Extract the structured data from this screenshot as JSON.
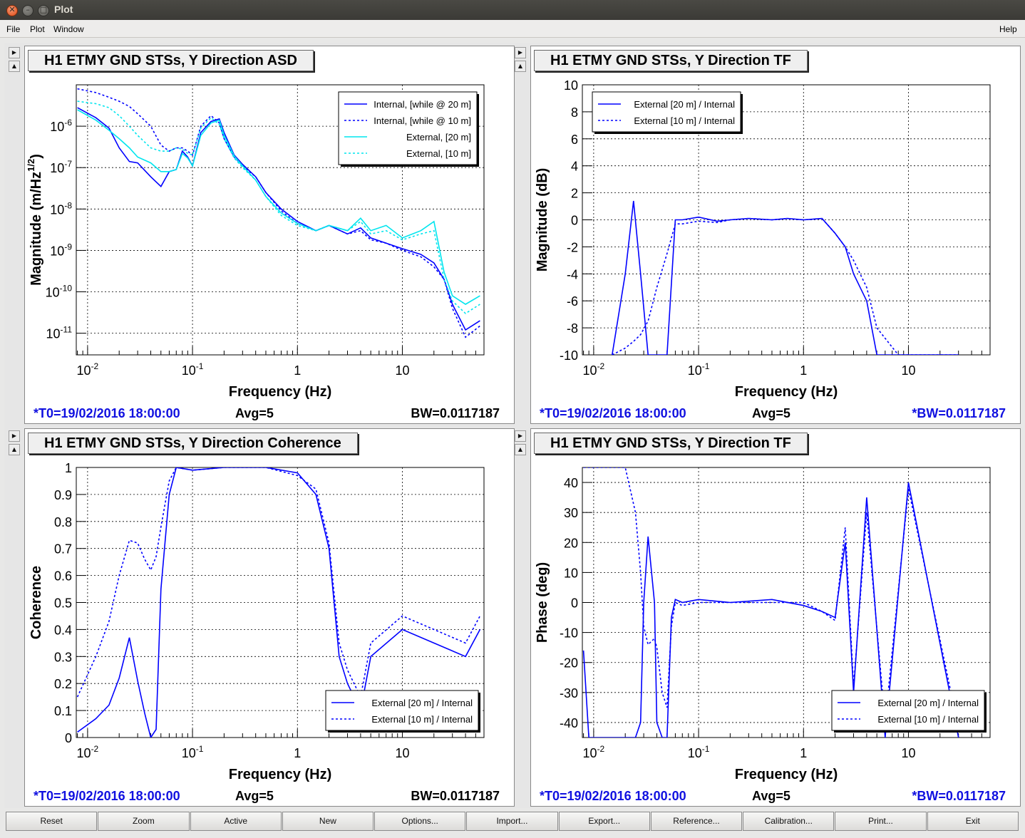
{
  "window": {
    "title": "Plot"
  },
  "menu": {
    "file": "File",
    "plot": "Plot",
    "window": "Window",
    "help": "Help"
  },
  "buttons": [
    "Reset",
    "Zoom",
    "Active",
    "New",
    "Options...",
    "Import...",
    "Export...",
    "Reference...",
    "Calibration...",
    "Print...",
    "Exit"
  ],
  "panels": [
    {
      "title": "H1 ETMY GND STSs, Y Direction ASD",
      "t0": "*T0=19/02/2016 18:00:00",
      "avg": "Avg=5",
      "bw": "BW=0.0117187",
      "bw_blue": false,
      "ylabel": "Magnitude (m/Hz^1/2)",
      "xlabel": "Frequency (Hz)",
      "legend": [
        "Internal, [while @ 20 m]",
        "Internal, [while @ 10 m]",
        "External, [20 m]",
        "External, [10 m]"
      ]
    },
    {
      "title": "H1 ETMY GND STSs, Y Direction TF",
      "t0": "*T0=19/02/2016 18:00:00",
      "avg": "Avg=5",
      "bw": "*BW=0.0117187",
      "bw_blue": true,
      "ylabel": "Magnitude (dB)",
      "xlabel": "Frequency (Hz)",
      "legend": [
        "External [20 m] / Internal",
        "External [10 m] / Internal"
      ]
    },
    {
      "title": "H1 ETMY GND STSs, Y Direction Coherence",
      "t0": "*T0=19/02/2016 18:00:00",
      "avg": "Avg=5",
      "bw": "BW=0.0117187",
      "bw_blue": false,
      "ylabel": "Coherence",
      "xlabel": "Frequency (Hz)",
      "legend": [
        "External [20 m] / Internal",
        "External [10 m] / Internal"
      ]
    },
    {
      "title": "H1 ETMY GND STSs, Y Direction TF",
      "t0": "*T0=19/02/2016 18:00:00",
      "avg": "Avg=5",
      "bw": "*BW=0.0117187",
      "bw_blue": true,
      "ylabel": "Phase (deg)",
      "xlabel": "Frequency (Hz)",
      "legend": [
        "External [20 m] / Internal",
        "External [10 m] / Internal"
      ]
    }
  ],
  "colors": {
    "series_blue": "#0000ff",
    "series_cyan": "#00e5ee",
    "info_blue": "#1010e0"
  },
  "chart_data": [
    {
      "type": "line",
      "xscale": "log",
      "yscale": "log",
      "title": "H1 ETMY GND STSs, Y Direction ASD",
      "xlabel": "Frequency (Hz)",
      "ylabel": "Magnitude (m/Hz^1/2)",
      "xlim": [
        0.0078,
        60
      ],
      "ylim": [
        3e-12,
        1e-05
      ],
      "xticks": [
        "10^-2",
        "10^-1",
        "1",
        "10"
      ],
      "yticks": [
        "10^-11",
        "10^-10",
        "10^-9",
        "10^-8",
        "10^-7",
        "10^-6"
      ],
      "grid": true,
      "legend": "top-right",
      "x": [
        0.008,
        0.012,
        0.016,
        0.02,
        0.025,
        0.03,
        0.04,
        0.05,
        0.06,
        0.07,
        0.08,
        0.09,
        0.1,
        0.12,
        0.15,
        0.18,
        0.2,
        0.25,
        0.3,
        0.4,
        0.5,
        0.7,
        1,
        1.5,
        2,
        3,
        4,
        5,
        7,
        10,
        15,
        20,
        25,
        30,
        40,
        55
      ],
      "series": [
        {
          "name": "Internal, [while @ 20 m]",
          "style": "solid",
          "color": "#0000ff",
          "values": [
            2.8e-06,
            1.6e-06,
            9e-07,
            3e-07,
            1.4e-07,
            1.3e-07,
            6e-08,
            3.5e-08,
            8e-08,
            9e-08,
            2.5e-07,
            1.8e-07,
            1.1e-07,
            7e-07,
            1.3e-06,
            1.5e-06,
            7e-07,
            2e-07,
            1.2e-07,
            6e-08,
            2.5e-08,
            1e-08,
            5e-09,
            3e-09,
            4e-09,
            2.5e-09,
            3.5e-09,
            2e-09,
            1.5e-09,
            1.1e-09,
            8e-10,
            5e-10,
            2e-10,
            5e-11,
            1.2e-11,
            2e-11
          ]
        },
        {
          "name": "Internal, [while @ 10 m]",
          "style": "dashed",
          "color": "#0000ff",
          "values": [
            8e-06,
            6.5e-06,
            5e-06,
            4e-06,
            3e-06,
            2e-06,
            1e-06,
            3.5e-07,
            2.5e-07,
            3e-07,
            3e-07,
            2.5e-07,
            2e-07,
            1e-06,
            1.8e-06,
            1.2e-06,
            5e-07,
            1.8e-07,
            1.1e-07,
            6e-08,
            2.5e-08,
            9e-09,
            4.5e-09,
            3e-09,
            4e-09,
            2.5e-09,
            3e-09,
            1.8e-09,
            1.5e-09,
            1e-09,
            7e-10,
            4e-10,
            2e-10,
            4e-11,
            8e-12,
            1.5e-11
          ]
        },
        {
          "name": "External, [20 m]",
          "style": "solid",
          "color": "#00e5ee",
          "values": [
            2.5e-06,
            1.4e-06,
            8e-07,
            5e-07,
            3e-07,
            1.8e-07,
            1.3e-07,
            8e-08,
            8e-08,
            9e-08,
            2.2e-07,
            1.7e-07,
            1.1e-07,
            6e-07,
            1.2e-06,
            1.4e-06,
            6e-07,
            1.9e-07,
            1.1e-07,
            5e-08,
            2e-08,
            8e-09,
            4.5e-09,
            3e-09,
            4e-09,
            3e-09,
            6e-09,
            3e-09,
            4e-09,
            2e-09,
            3e-09,
            5e-09,
            3e-10,
            8e-11,
            5e-11,
            8e-11
          ]
        },
        {
          "name": "External, [10 m]",
          "style": "dashed",
          "color": "#00e5ee",
          "values": [
            4e-06,
            3.5e-06,
            2.8e-06,
            1.8e-06,
            1e-06,
            6e-07,
            3e-07,
            2.5e-07,
            2.5e-07,
            3e-07,
            2.8e-07,
            2.2e-07,
            2e-07,
            9e-07,
            1.6e-06,
            1.1e-06,
            5e-07,
            1.7e-07,
            1e-07,
            5e-08,
            2e-08,
            7e-09,
            4e-09,
            3e-09,
            4e-09,
            3e-09,
            5e-09,
            2.5e-09,
            3e-09,
            1.8e-09,
            2.5e-09,
            3e-09,
            2e-10,
            6e-11,
            3e-11,
            5e-11
          ]
        }
      ]
    },
    {
      "type": "line",
      "xscale": "log",
      "title": "H1 ETMY GND STSs, Y Direction TF",
      "xlabel": "Frequency (Hz)",
      "ylabel": "Magnitude (dB)",
      "xlim": [
        0.0078,
        60
      ],
      "ylim": [
        -10,
        10
      ],
      "xticks": [
        "10^-2",
        "10^-1",
        "1",
        "10"
      ],
      "yticks": [
        "-10",
        "-8",
        "-6",
        "-4",
        "-2",
        "0",
        "2",
        "4",
        "6",
        "8",
        "10"
      ],
      "grid": true,
      "legend": "top-left",
      "x": [
        0.015,
        0.02,
        0.024,
        0.028,
        0.033,
        0.04,
        0.05,
        0.06,
        0.07,
        0.1,
        0.15,
        0.2,
        0.3,
        0.5,
        0.7,
        1,
        1.5,
        2,
        2.5,
        3,
        4,
        5,
        8,
        15,
        30
      ],
      "series": [
        {
          "name": "External [20 m] / Internal",
          "style": "solid",
          "color": "#0000ff",
          "values": [
            -10,
            -4,
            1.4,
            -4,
            -10,
            -10,
            -10,
            0,
            0,
            0.2,
            -0.1,
            0,
            0.1,
            0,
            0.1,
            0,
            0.1,
            -1,
            -2,
            -4,
            -6,
            -10,
            -10,
            -10,
            -10
          ]
        },
        {
          "name": "External [10 m] / Internal",
          "style": "dashed",
          "color": "#0000ff",
          "values": [
            -10,
            -9.5,
            -9,
            -8.5,
            -7.5,
            -5,
            -2.5,
            -0.3,
            -0.3,
            -0.1,
            -0.2,
            0,
            0.1,
            0,
            0.1,
            0,
            0.1,
            -1,
            -2,
            -3,
            -5,
            -8,
            -10,
            -10,
            -10
          ]
        }
      ]
    },
    {
      "type": "line",
      "xscale": "log",
      "title": "H1 ETMY GND STSs, Y Direction Coherence",
      "xlabel": "Frequency (Hz)",
      "ylabel": "Coherence",
      "xlim": [
        0.0078,
        60
      ],
      "ylim": [
        0,
        1
      ],
      "xticks": [
        "10^-2",
        "10^-1",
        "1",
        "10"
      ],
      "yticks": [
        "0",
        "0.1",
        "0.2",
        "0.3",
        "0.4",
        "0.5",
        "0.6",
        "0.7",
        "0.8",
        "0.9",
        "1"
      ],
      "grid": true,
      "legend": "bottom-right",
      "x": [
        0.008,
        0.012,
        0.016,
        0.02,
        0.025,
        0.03,
        0.035,
        0.04,
        0.045,
        0.05,
        0.06,
        0.07,
        0.1,
        0.2,
        0.5,
        1,
        1.5,
        2,
        2.5,
        3,
        4,
        5,
        10,
        20,
        40,
        55
      ],
      "series": [
        {
          "name": "External [20 m] / Internal",
          "style": "solid",
          "color": "#0000ff",
          "values": [
            0.02,
            0.07,
            0.12,
            0.22,
            0.37,
            0.21,
            0.09,
            0.0,
            0.03,
            0.55,
            0.9,
            1.0,
            0.99,
            1.0,
            1.0,
            0.98,
            0.9,
            0.7,
            0.3,
            0.2,
            0.1,
            0.3,
            0.4,
            0.35,
            0.3,
            0.4
          ]
        },
        {
          "name": "External [10 m] / Internal",
          "style": "dashed",
          "color": "#0000ff",
          "values": [
            0.15,
            0.3,
            0.43,
            0.6,
            0.73,
            0.72,
            0.66,
            0.62,
            0.67,
            0.78,
            0.95,
            1.0,
            0.99,
            1.0,
            1.0,
            0.97,
            0.92,
            0.72,
            0.35,
            0.25,
            0.15,
            0.35,
            0.45,
            0.4,
            0.35,
            0.45
          ]
        }
      ]
    },
    {
      "type": "line",
      "xscale": "log",
      "title": "H1 ETMY GND STSs, Y Direction TF",
      "xlabel": "Frequency (Hz)",
      "ylabel": "Phase (deg)",
      "xlim": [
        0.0078,
        60
      ],
      "ylim": [
        -45,
        45
      ],
      "xticks": [
        "10^-2",
        "10^-1",
        "1",
        "10"
      ],
      "yticks": [
        "-40",
        "-30",
        "-20",
        "-10",
        "0",
        "10",
        "20",
        "30",
        "40"
      ],
      "grid": true,
      "legend": "bottom-right",
      "x": [
        0.008,
        0.009,
        0.012,
        0.015,
        0.02,
        0.025,
        0.028,
        0.03,
        0.033,
        0.038,
        0.04,
        0.045,
        0.05,
        0.055,
        0.06,
        0.07,
        0.1,
        0.2,
        0.5,
        1,
        1.5,
        2,
        2.5,
        3,
        4,
        6,
        10,
        30
      ],
      "series": [
        {
          "name": "External [20 m] / Internal",
          "style": "solid",
          "color": "#0000ff",
          "values": [
            -16,
            -45,
            -45,
            -45,
            -45,
            -45,
            -40,
            0,
            22,
            0,
            -40,
            -45,
            -45,
            -5,
            1,
            0,
            1,
            0,
            1,
            -1,
            -3,
            -5,
            20,
            -30,
            35,
            -45,
            40,
            -45
          ]
        },
        {
          "name": "External [10 m] / Internal",
          "style": "dashed",
          "color": "#0000ff",
          "values": [
            45,
            45,
            45,
            45,
            45,
            30,
            10,
            -8,
            -14,
            -12,
            -15,
            -30,
            -35,
            -8,
            0,
            -1,
            0,
            0,
            0,
            0,
            -3,
            -6,
            25,
            -28,
            30,
            -40,
            38,
            -42
          ]
        }
      ]
    }
  ]
}
